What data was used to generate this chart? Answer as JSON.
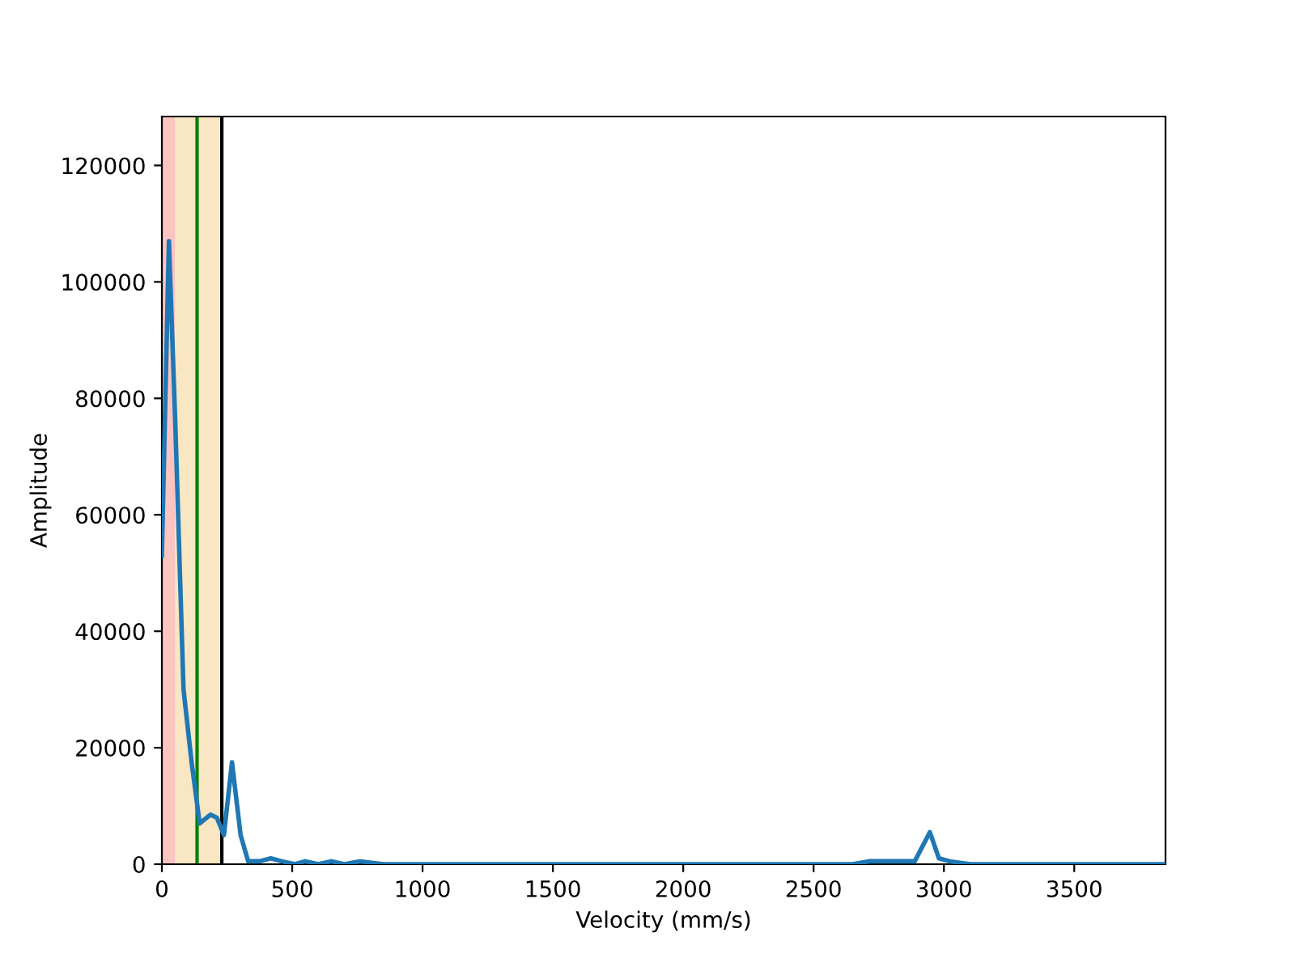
{
  "chart_data": {
    "type": "line",
    "xlabel": "Velocity (mm/s)",
    "ylabel": "Amplitude",
    "x": [
      0,
      27,
      52,
      83,
      114,
      145,
      186,
      211,
      238,
      269,
      302,
      331,
      375,
      418,
      460,
      510,
      550,
      600,
      650,
      700,
      760,
      850,
      1000,
      1150,
      1300,
      1500,
      1700,
      1900,
      2100,
      2300,
      2500,
      2650,
      2713,
      2795,
      2888,
      2946,
      2981,
      3022,
      3100,
      3300,
      3500,
      3650,
      3850
    ],
    "series": [
      {
        "color": "#1f77b4",
        "values": [
          53000,
          107000,
          75000,
          30000,
          17500,
          7000,
          8500,
          8000,
          5000,
          17500,
          5000,
          500,
          500,
          1000,
          500,
          0,
          500,
          0,
          500,
          0,
          500,
          0,
          0,
          0,
          0,
          0,
          0,
          0,
          0,
          0,
          0,
          0,
          500,
          500,
          500,
          5500,
          1000,
          500,
          0,
          0,
          0,
          0,
          0
        ]
      }
    ],
    "xlim": [
      0,
      3850
    ],
    "ylim": [
      0,
      128400
    ],
    "xticks": [
      0,
      500,
      1000,
      1500,
      2000,
      2500,
      3000,
      3500
    ],
    "yticks": [
      0,
      20000,
      40000,
      60000,
      80000,
      100000,
      120000
    ],
    "bands": [
      {
        "axis": "x",
        "from": 0,
        "to": 50,
        "color": "#fbc4c0"
      },
      {
        "axis": "x",
        "from": 50,
        "to": 230,
        "color": "#f9e6c3"
      }
    ],
    "ref_lines": [
      {
        "axis": "x",
        "value": 135,
        "color": "#008000",
        "line_style": "solid"
      },
      {
        "axis": "x",
        "value": 230,
        "color": "#000000",
        "line_style": "solid"
      }
    ],
    "grid": false,
    "legend": false
  }
}
